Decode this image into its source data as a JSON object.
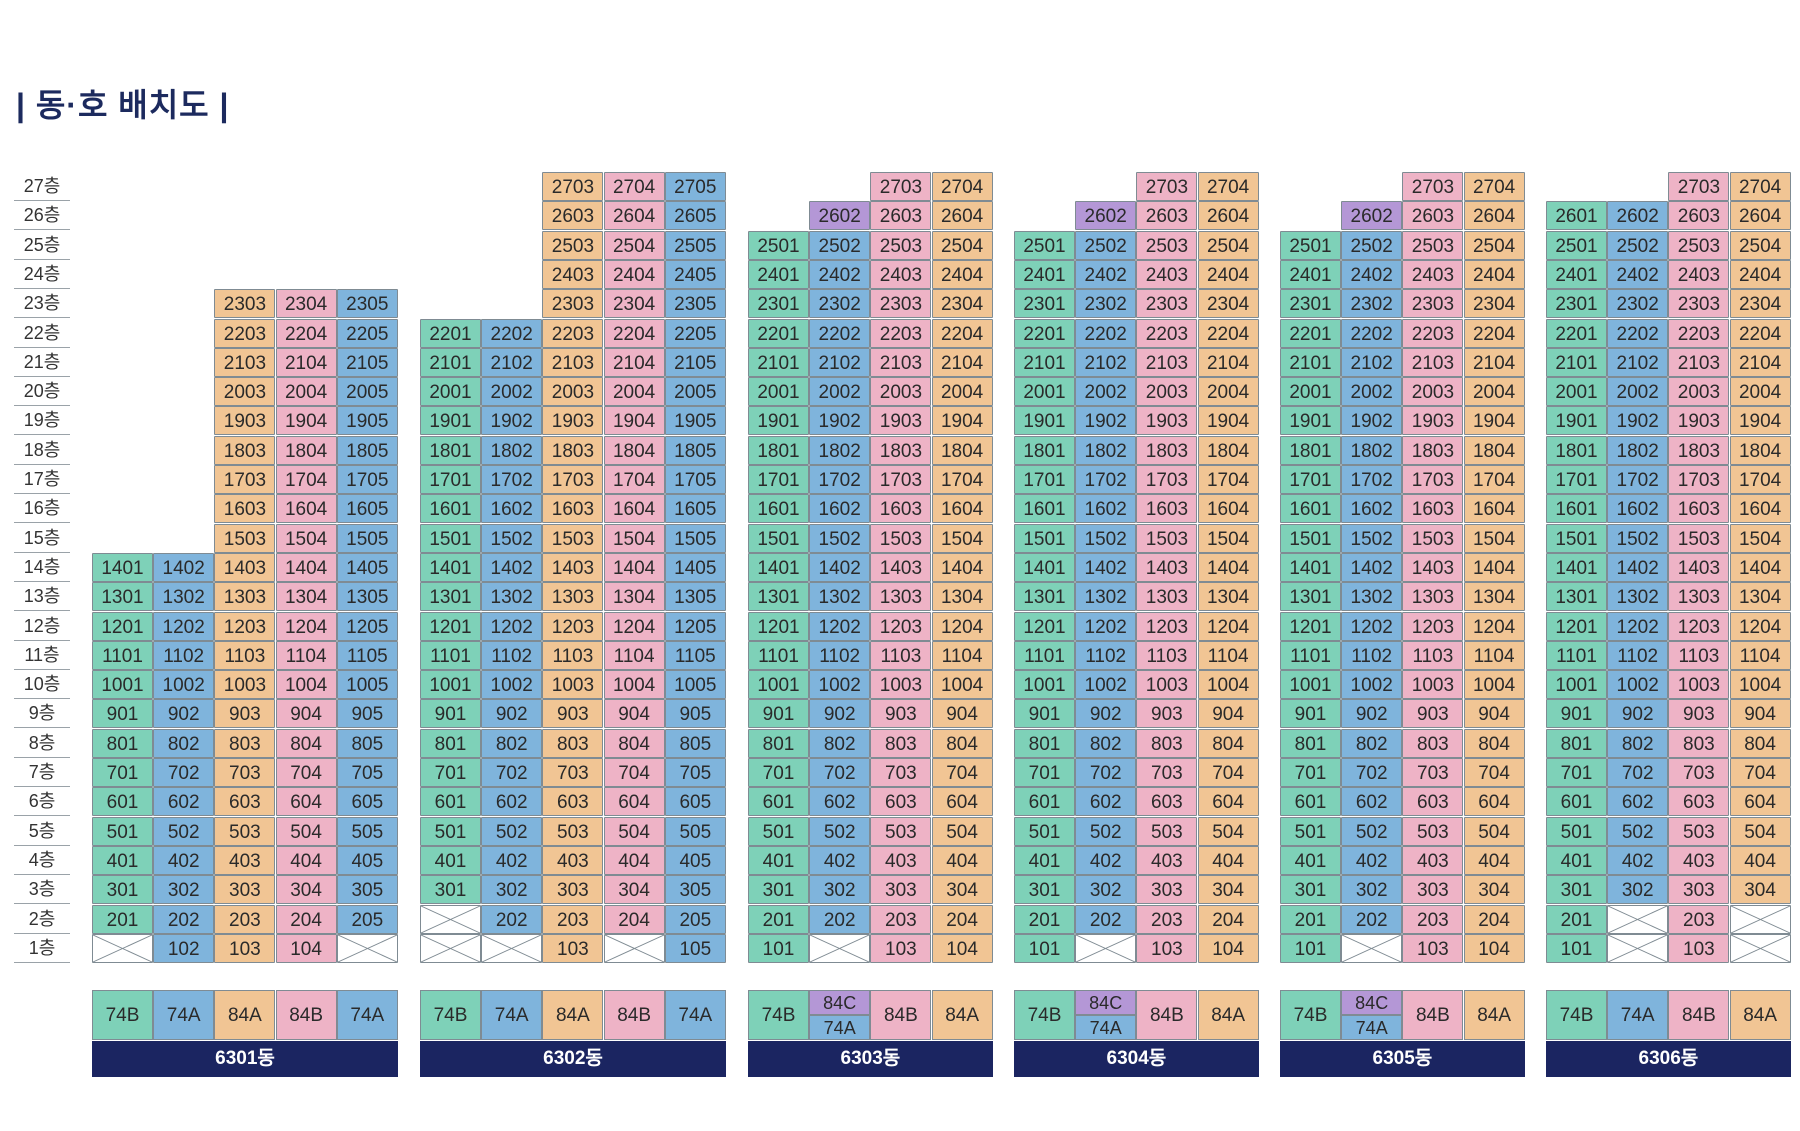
{
  "title": "| 동·호 배치도 |",
  "colors": {
    "74A": "#7fb4dc",
    "74B": "#7ed1b8",
    "84A": "#f1c594",
    "84B": "#eeb3c6",
    "84C": "#b497d6",
    "bar": "#1b2561"
  },
  "floors": [
    "27층",
    "26층",
    "25층",
    "24층",
    "23층",
    "22층",
    "21층",
    "20층",
    "19층",
    "18층",
    "17층",
    "16층",
    "15층",
    "14층",
    "13층",
    "12층",
    "11층",
    "10층",
    "9층",
    "8층",
    "7층",
    "6층",
    "5층",
    "4층",
    "3층",
    "2층",
    "1층"
  ],
  "buildings": [
    {
      "name": "6301동",
      "columns": [
        {
          "top": 14,
          "type": "74B",
          "empty": [
            1
          ]
        },
        {
          "top": 14,
          "type": "74A",
          "empty": []
        },
        {
          "top": 23,
          "type": "84A",
          "empty": []
        },
        {
          "top": 23,
          "type": "84B",
          "empty": []
        },
        {
          "top": 23,
          "type": "74A",
          "empty": [
            1
          ]
        }
      ]
    },
    {
      "name": "6302동",
      "columns": [
        {
          "top": 22,
          "type": "74B",
          "empty": [
            1,
            2
          ]
        },
        {
          "top": 22,
          "type": "74A",
          "empty": [
            1
          ]
        },
        {
          "top": 27,
          "type": "84A",
          "empty": []
        },
        {
          "top": 27,
          "type": "84B",
          "empty": [
            1
          ]
        },
        {
          "top": 27,
          "type": "74A",
          "empty": []
        }
      ]
    },
    {
      "name": "6303동",
      "columns": [
        {
          "top": 25,
          "type": "74B",
          "empty": []
        },
        {
          "top": 26,
          "type": "74A",
          "top_type": "84C",
          "empty": [
            1
          ]
        },
        {
          "top": 27,
          "type": "84B",
          "empty": []
        },
        {
          "top": 27,
          "type": "84A",
          "empty": []
        }
      ]
    },
    {
      "name": "6304동",
      "columns": [
        {
          "top": 25,
          "type": "74B",
          "empty": []
        },
        {
          "top": 26,
          "type": "74A",
          "top_type": "84C",
          "empty": [
            1
          ]
        },
        {
          "top": 27,
          "type": "84B",
          "empty": []
        },
        {
          "top": 27,
          "type": "84A",
          "empty": []
        }
      ]
    },
    {
      "name": "6305동",
      "columns": [
        {
          "top": 25,
          "type": "74B",
          "empty": []
        },
        {
          "top": 26,
          "type": "74A",
          "top_type": "84C",
          "empty": [
            1
          ]
        },
        {
          "top": 27,
          "type": "84B",
          "empty": []
        },
        {
          "top": 27,
          "type": "84A",
          "empty": []
        }
      ]
    },
    {
      "name": "6306동",
      "columns": [
        {
          "top": 26,
          "type": "74B",
          "empty": []
        },
        {
          "top": 26,
          "type": "74A",
          "empty": [
            1,
            2
          ]
        },
        {
          "top": 27,
          "type": "84B",
          "empty": []
        },
        {
          "top": 27,
          "type": "84A",
          "empty": [
            1,
            2
          ]
        }
      ]
    }
  ],
  "type_labels": [
    [
      {
        "label": "74B"
      },
      {
        "label": "74A"
      },
      {
        "label": "84A"
      },
      {
        "label": "84B"
      },
      {
        "label": "74A"
      }
    ],
    [
      {
        "label": "74B"
      },
      {
        "label": "74A"
      },
      {
        "label": "84A"
      },
      {
        "label": "84B"
      },
      {
        "label": "74A"
      }
    ],
    [
      {
        "label": "74B"
      },
      {
        "top": "84C",
        "bottom": "74A"
      },
      {
        "label": "84B"
      },
      {
        "label": "84A"
      }
    ],
    [
      {
        "label": "74B"
      },
      {
        "top": "84C",
        "bottom": "74A"
      },
      {
        "label": "84B"
      },
      {
        "label": "84A"
      }
    ],
    [
      {
        "label": "74B"
      },
      {
        "top": "84C",
        "bottom": "74A"
      },
      {
        "label": "84B"
      },
      {
        "label": "84A"
      }
    ],
    [
      {
        "label": "74B"
      },
      {
        "label": "74A"
      },
      {
        "label": "84B"
      },
      {
        "label": "84A"
      }
    ]
  ]
}
